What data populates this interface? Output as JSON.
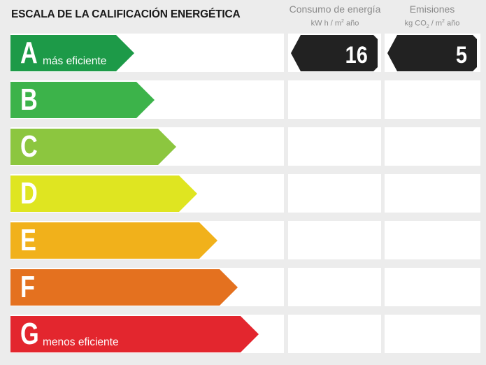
{
  "title": "ESCALA DE LA CALIFICACIÓN ENERGÉTICA",
  "columns": {
    "consumo": {
      "label": "Consumo de energía",
      "unit_pre": "kW h / m",
      "unit_sup": "2",
      "unit_post": " año"
    },
    "emisiones": {
      "label": "Emisiones",
      "unit_pre": "kg CO",
      "unit_sub": "2",
      "unit_mid": " / m",
      "unit_sup": "2",
      "unit_post": " año"
    }
  },
  "rows": [
    {
      "letter": "A",
      "desc": "más eficiente",
      "color": "#1d9a48",
      "fill": 0.452
    },
    {
      "letter": "B",
      "desc": "",
      "color": "#3cb34a",
      "fill": 0.528
    },
    {
      "letter": "C",
      "desc": "",
      "color": "#8cc63f",
      "fill": 0.605
    },
    {
      "letter": "D",
      "desc": "",
      "color": "#dfe521",
      "fill": 0.682
    },
    {
      "letter": "E",
      "desc": "",
      "color": "#f1b11b",
      "fill": 0.756
    },
    {
      "letter": "F",
      "desc": "",
      "color": "#e4711f",
      "fill": 0.832
    },
    {
      "letter": "G",
      "desc": "menos eficiente",
      "color": "#e3262e",
      "fill": 0.908
    }
  ],
  "rating": {
    "row": 0,
    "consumo": "16",
    "emisiones": "5"
  }
}
